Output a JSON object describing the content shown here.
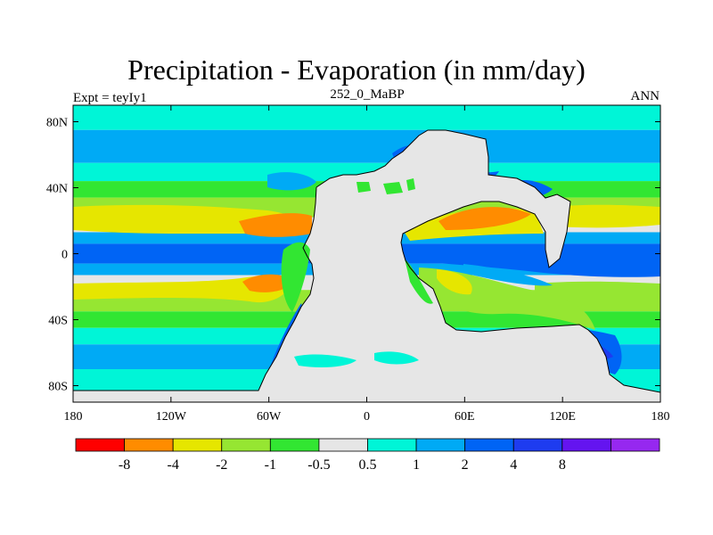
{
  "title": "Precipitation - Evaporation (in mm/day)",
  "left_label": "Expt = teyIy1",
  "center_label": "252_0_MaBP",
  "right_label": "ANN",
  "colors": {
    "neg_8": "#ff0000",
    "neg_4": "#ff8c00",
    "neg_2": "#e6e600",
    "neg_1": "#96e632",
    "neg_05": "#32e632",
    "neutral": "#e6e6e6",
    "pos_05": "#00f5d7",
    "pos_1": "#00aaf5",
    "pos_2": "#0064f5",
    "pos_4": "#1e3cf0",
    "pos_8": "#6414f0",
    "pos_max": "#9628f0",
    "land": "#e6e6e6",
    "coast": "#000000"
  },
  "chart_data": {
    "type": "heatmap",
    "projection": "cylindrical equidistant",
    "xlim": [
      -180,
      180
    ],
    "ylim": [
      -90,
      90
    ],
    "x_ticks": [
      "180",
      "120W",
      "60W",
      "0",
      "60E",
      "120E",
      "180"
    ],
    "y_ticks": [
      "80N",
      "40N",
      "0",
      "40S",
      "80S"
    ],
    "colorbar_labels": [
      "-8",
      "-4",
      "-2",
      "-1",
      "-0.5",
      "0.5",
      "1",
      "2",
      "4",
      "8"
    ],
    "colorbar_colors": [
      "#ff0000",
      "#ff8c00",
      "#e6e600",
      "#96e632",
      "#32e632",
      "#e6e6e6",
      "#00f5d7",
      "#00aaf5",
      "#0064f5",
      "#1e3cf0",
      "#6414f0",
      "#9628f0"
    ],
    "zonal_bands": [
      {
        "lat": [
          75,
          90
        ],
        "level": "pos_05"
      },
      {
        "lat": [
          55,
          75
        ],
        "level": "pos_1"
      },
      {
        "lat": [
          44,
          55
        ],
        "level": "pos_05"
      },
      {
        "lat": [
          34,
          44
        ],
        "level": "neg_05"
      },
      {
        "lat": [
          22,
          34
        ],
        "level": "neg_1"
      },
      {
        "lat": [
          13,
          22
        ],
        "level": "neutral"
      },
      {
        "lat": [
          6,
          13
        ],
        "level": "pos_1"
      },
      {
        "lat": [
          -6,
          6
        ],
        "level": "pos_2"
      },
      {
        "lat": [
          -13,
          -6
        ],
        "level": "pos_1"
      },
      {
        "lat": [
          -22,
          -13
        ],
        "level": "neutral"
      },
      {
        "lat": [
          -35,
          -22
        ],
        "level": "neg_1"
      },
      {
        "lat": [
          -45,
          -35
        ],
        "level": "neg_05"
      },
      {
        "lat": [
          -55,
          -45
        ],
        "level": "pos_05"
      },
      {
        "lat": [
          -70,
          -55
        ],
        "level": "pos_1"
      },
      {
        "lat": [
          -90,
          -70
        ],
        "level": "pos_05"
      }
    ]
  }
}
